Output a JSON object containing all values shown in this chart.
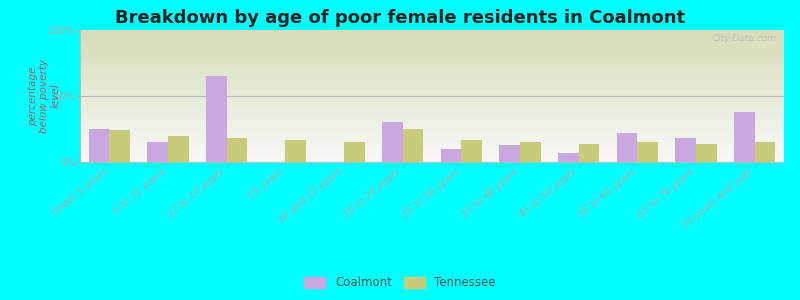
{
  "title": "Breakdown by age of poor female residents in Coalmont",
  "ylabel": "percentage\nbelow poverty\nlevel",
  "categories": [
    "Under 5 years",
    "6 to 11 years",
    "12 to 14 years",
    "15 years",
    "16 and 17 years",
    "18 to 24 years",
    "25 to 34 years",
    "35 to 44 years",
    "45 to 54 years",
    "55 to 64 years",
    "65 to 74 years",
    "75 years and over"
  ],
  "coalmont_values": [
    25,
    15,
    65,
    0,
    0,
    30,
    10,
    13,
    7,
    22,
    18,
    38
  ],
  "tennessee_values": [
    24,
    20,
    18,
    17,
    15,
    25,
    17,
    15,
    14,
    15,
    14,
    15
  ],
  "coalmont_color": "#c9a8e0",
  "tennessee_color": "#c8cc7a",
  "background_color": "#00ffff",
  "plot_bg_top": "#d4deb8",
  "plot_bg_bottom": "#f8f8f8",
  "ylim": [
    0,
    100
  ],
  "yticks": [
    0,
    50,
    100
  ],
  "ytick_labels": [
    "0%",
    "50%",
    "100%"
  ],
  "bar_width": 0.35,
  "title_fontsize": 13,
  "axis_label_fontsize": 7.5,
  "tick_fontsize": 7,
  "legend_labels": [
    "Coalmont",
    "Tennessee"
  ],
  "watermark": "City-Data.com",
  "label_color": "#996666"
}
